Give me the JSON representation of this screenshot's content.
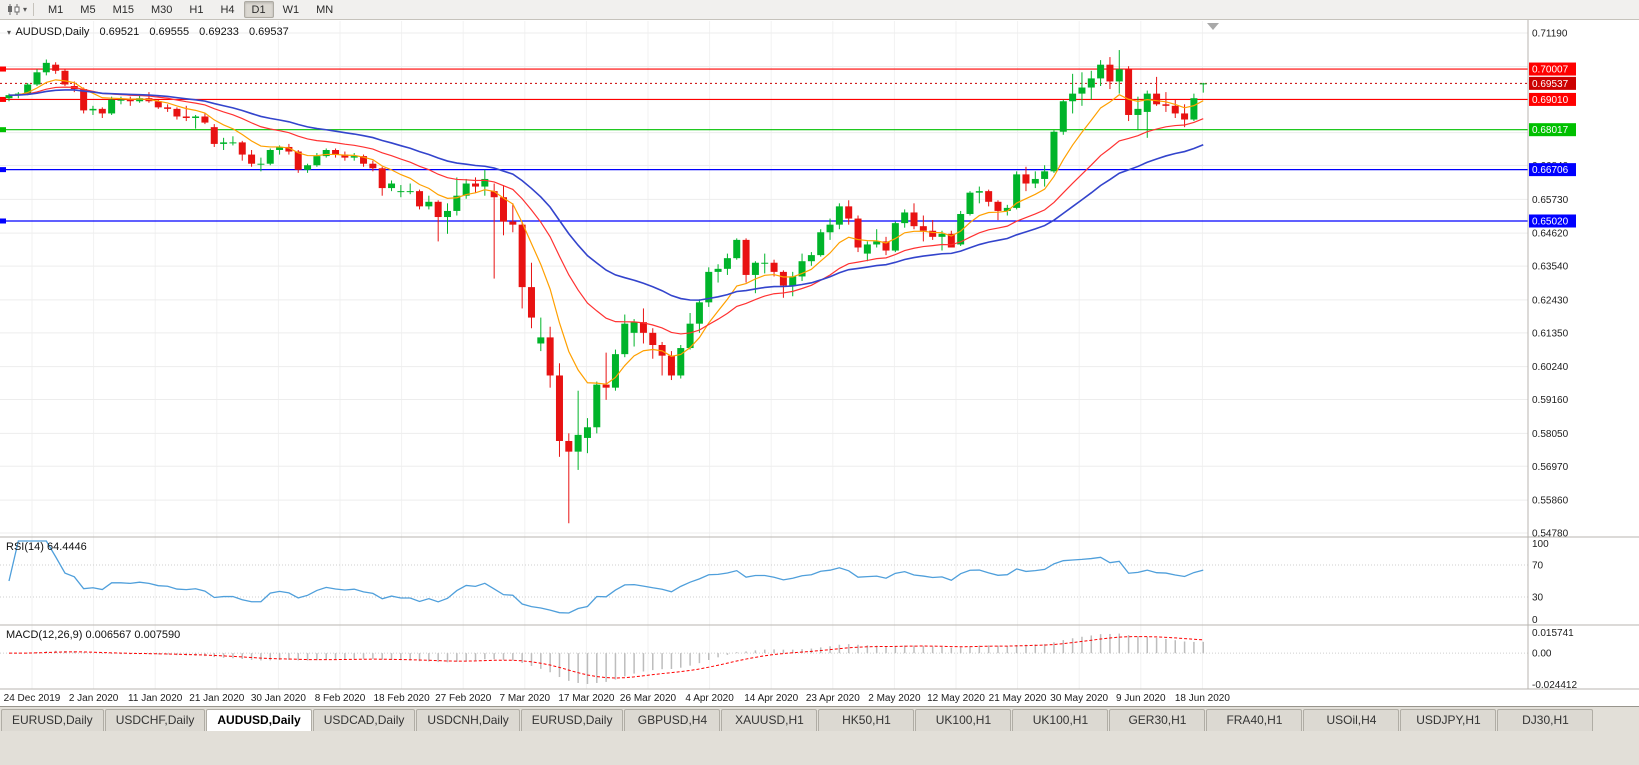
{
  "toolbar": {
    "chart_type_icon": "candlestick-chart-icon",
    "dropdown_icon": "chevron-down-icon",
    "timeframes": [
      "M1",
      "M5",
      "M15",
      "M30",
      "H1",
      "H4",
      "D1",
      "W1",
      "MN"
    ],
    "active_timeframe": "D1"
  },
  "chart_header": {
    "collapse_icon": "triangle-down-icon",
    "symbol": "AUDUSD,Daily",
    "open": "0.69521",
    "high": "0.69555",
    "low": "0.69233",
    "close": "0.69537"
  },
  "price_axis": {
    "labels": [
      "0.71190",
      "0.70090",
      "0.69000",
      "0.67920",
      "0.66840",
      "0.65730",
      "0.64620",
      "0.63540",
      "0.62430",
      "0.61350",
      "0.60240",
      "0.59160",
      "0.58050",
      "0.56970",
      "0.55860",
      "0.54780"
    ]
  },
  "levels": [
    {
      "price": 0.70007,
      "label": "0.70007",
      "color": "#ff0000",
      "type": "line"
    },
    {
      "price": 0.69537,
      "label": "0.69537",
      "color": "#cc0000",
      "type": "current"
    },
    {
      "price": 0.6901,
      "label": "0.69010",
      "color": "#ff0000",
      "type": "line"
    },
    {
      "price": 0.68017,
      "label": "0.68017",
      "color": "#00c000",
      "type": "line"
    },
    {
      "price": 0.66706,
      "label": "0.66706",
      "color": "#0000ff",
      "type": "line"
    },
    {
      "price": 0.6502,
      "label": "0.65020",
      "color": "#0000ff",
      "type": "line"
    }
  ],
  "date_axis": [
    "24 Dec 2019",
    "2 Jan 2020",
    "11 Jan 2020",
    "21 Jan 2020",
    "30 Jan 2020",
    "8 Feb 2020",
    "18 Feb 2020",
    "27 Feb 2020",
    "7 Mar 2020",
    "17 Mar 2020",
    "26 Mar 2020",
    "4 Apr 2020",
    "14 Apr 2020",
    "23 Apr 2020",
    "2 May 2020",
    "12 May 2020",
    "21 May 2020",
    "30 May 2020",
    "9 Jun 2020",
    "18 Jun 2020"
  ],
  "rsi": {
    "header": "RSI(14) 64.4446",
    "period": 14,
    "value": 64.4446,
    "levels": [
      "100",
      "70",
      "30",
      "0"
    ],
    "line_color": "#4f9fdb"
  },
  "macd": {
    "header": "MACD(12,26,9) 0.006567 0.007590",
    "fast": 12,
    "slow": 26,
    "signal": 9,
    "main_value": 0.006567,
    "signal_value": 0.00759,
    "axis": [
      "0.015741",
      "0.00",
      "-0.024412"
    ],
    "max": 0.015741,
    "min": -0.024412,
    "bar_color": "#bdbdbd",
    "signal_color": "#ff0000"
  },
  "tabs": [
    "EURUSD,Daily",
    "USDCHF,Daily",
    "AUDUSD,Daily",
    "USDCAD,Daily",
    "USDCNH,Daily",
    "EURUSD,Daily",
    "GBPUSD,H4",
    "XAUUSD,H1",
    "HK50,H1",
    "UK100,H1",
    "UK100,H1",
    "GER30,H1",
    "FRA40,H1",
    "USOil,H4",
    "USDJPY,H1",
    "DJ30,H1"
  ],
  "active_tab_index": 2,
  "chart_data": {
    "type": "candlestick",
    "symbol": "AUDUSD",
    "timeframe": "Daily",
    "ylim": [
      0.5478,
      0.7119
    ],
    "style": {
      "up_color": "#00b42a",
      "down_color": "#e81212",
      "grid_color": "#ededed",
      "vgrid_color": "#f2f2f2",
      "background": "#ffffff"
    },
    "moving_averages": [
      {
        "name": "fast-ma",
        "period": 8,
        "method": "ema",
        "color": "#ffa000",
        "width": 1.2
      },
      {
        "name": "mid-ma",
        "period": 20,
        "method": "ema",
        "color": "#ff3232",
        "width": 1.2
      },
      {
        "name": "slow-ma",
        "period": 34,
        "method": "ema",
        "color": "#3344cc",
        "width": 1.6
      }
    ],
    "ohlc": [
      [
        0.6905,
        0.692,
        0.6895,
        0.6915
      ],
      [
        0.6915,
        0.6925,
        0.6905,
        0.692
      ],
      [
        0.692,
        0.6955,
        0.6915,
        0.695
      ],
      [
        0.695,
        0.7,
        0.6945,
        0.699
      ],
      [
        0.699,
        0.7032,
        0.698,
        0.7021
      ],
      [
        0.7015,
        0.7023,
        0.6985,
        0.6995
      ],
      [
        0.6995,
        0.7,
        0.6945,
        0.695
      ],
      [
        0.6945,
        0.696,
        0.6925,
        0.6935
      ],
      [
        0.6935,
        0.694,
        0.6855,
        0.6865
      ],
      [
        0.6865,
        0.688,
        0.685,
        0.687
      ],
      [
        0.687,
        0.6875,
        0.684,
        0.6855
      ],
      [
        0.6855,
        0.691,
        0.685,
        0.69
      ],
      [
        0.69,
        0.691,
        0.6885,
        0.69
      ],
      [
        0.69,
        0.691,
        0.688,
        0.6895
      ],
      [
        0.6895,
        0.6915,
        0.689,
        0.6905
      ],
      [
        0.6905,
        0.6925,
        0.689,
        0.6895
      ],
      [
        0.6895,
        0.69,
        0.687,
        0.6875
      ],
      [
        0.6875,
        0.6885,
        0.686,
        0.687
      ],
      [
        0.687,
        0.6875,
        0.6835,
        0.6845
      ],
      [
        0.6845,
        0.688,
        0.683,
        0.684
      ],
      [
        0.684,
        0.685,
        0.6805,
        0.6845
      ],
      [
        0.6845,
        0.6855,
        0.682,
        0.6825
      ],
      [
        0.681,
        0.682,
        0.6745,
        0.6755
      ],
      [
        0.6755,
        0.6775,
        0.6735,
        0.676
      ],
      [
        0.676,
        0.678,
        0.675,
        0.676
      ],
      [
        0.676,
        0.6765,
        0.67,
        0.672
      ],
      [
        0.672,
        0.6735,
        0.668,
        0.669
      ],
      [
        0.669,
        0.671,
        0.6665,
        0.669
      ],
      [
        0.669,
        0.674,
        0.6685,
        0.6735
      ],
      [
        0.6735,
        0.675,
        0.672,
        0.6745
      ],
      [
        0.6745,
        0.6755,
        0.672,
        0.673
      ],
      [
        0.673,
        0.6735,
        0.666,
        0.667
      ],
      [
        0.667,
        0.669,
        0.666,
        0.6685
      ],
      [
        0.6685,
        0.6725,
        0.668,
        0.6715
      ],
      [
        0.6715,
        0.674,
        0.671,
        0.6735
      ],
      [
        0.6735,
        0.674,
        0.671,
        0.672
      ],
      [
        0.672,
        0.673,
        0.67,
        0.671
      ],
      [
        0.671,
        0.6725,
        0.67,
        0.6715
      ],
      [
        0.6715,
        0.672,
        0.668,
        0.669
      ],
      [
        0.669,
        0.67,
        0.6665,
        0.6675
      ],
      [
        0.6675,
        0.668,
        0.6585,
        0.661
      ],
      [
        0.661,
        0.6635,
        0.66,
        0.6625
      ],
      [
        0.66,
        0.662,
        0.658,
        0.66
      ],
      [
        0.66,
        0.6625,
        0.659,
        0.66
      ],
      [
        0.66,
        0.6605,
        0.654,
        0.655
      ],
      [
        0.655,
        0.6585,
        0.654,
        0.6565
      ],
      [
        0.6565,
        0.657,
        0.6435,
        0.6515
      ],
      [
        0.6515,
        0.656,
        0.646,
        0.6535
      ],
      [
        0.6535,
        0.6645,
        0.652,
        0.6585
      ],
      [
        0.6585,
        0.664,
        0.6575,
        0.6625
      ],
      [
        0.6625,
        0.6645,
        0.6595,
        0.6615
      ],
      [
        0.6615,
        0.667,
        0.6585,
        0.664
      ],
      [
        0.66,
        0.6625,
        0.6313,
        0.658
      ],
      [
        0.658,
        0.662,
        0.6455,
        0.65
      ],
      [
        0.65,
        0.656,
        0.6465,
        0.649
      ],
      [
        0.649,
        0.65,
        0.6215,
        0.6285
      ],
      [
        0.6285,
        0.6365,
        0.615,
        0.6185
      ],
      [
        0.61,
        0.6185,
        0.6075,
        0.612
      ],
      [
        0.612,
        0.6155,
        0.5955,
        0.5995
      ],
      [
        0.5995,
        0.6035,
        0.5728,
        0.578
      ],
      [
        0.578,
        0.5805,
        0.551,
        0.5745
      ],
      [
        0.5745,
        0.5945,
        0.5685,
        0.58
      ],
      [
        0.579,
        0.5855,
        0.574,
        0.5825
      ],
      [
        0.5825,
        0.5975,
        0.5805,
        0.5965
      ],
      [
        0.5965,
        0.607,
        0.5915,
        0.5955
      ],
      [
        0.5955,
        0.608,
        0.5945,
        0.6065
      ],
      [
        0.6065,
        0.6195,
        0.6055,
        0.6165
      ],
      [
        0.6135,
        0.618,
        0.609,
        0.617
      ],
      [
        0.617,
        0.6215,
        0.61,
        0.6135
      ],
      [
        0.6135,
        0.615,
        0.605,
        0.6095
      ],
      [
        0.6095,
        0.6105,
        0.5995,
        0.606
      ],
      [
        0.606,
        0.6075,
        0.598,
        0.5995
      ],
      [
        0.5995,
        0.6095,
        0.5985,
        0.6085
      ],
      [
        0.6085,
        0.62,
        0.608,
        0.6165
      ],
      [
        0.6165,
        0.6245,
        0.6135,
        0.6235
      ],
      [
        0.6235,
        0.635,
        0.622,
        0.6335
      ],
      [
        0.6335,
        0.636,
        0.63,
        0.6345
      ],
      [
        0.6345,
        0.6395,
        0.6325,
        0.638
      ],
      [
        0.638,
        0.6445,
        0.6375,
        0.644
      ],
      [
        0.644,
        0.6445,
        0.63,
        0.6325
      ],
      [
        0.6325,
        0.637,
        0.6265,
        0.6365
      ],
      [
        0.6365,
        0.6395,
        0.633,
        0.6365
      ],
      [
        0.6365,
        0.6375,
        0.632,
        0.6335
      ],
      [
        0.6335,
        0.634,
        0.625,
        0.629
      ],
      [
        0.629,
        0.6335,
        0.6255,
        0.632
      ],
      [
        0.632,
        0.6395,
        0.6305,
        0.637
      ],
      [
        0.637,
        0.64,
        0.6355,
        0.639
      ],
      [
        0.639,
        0.6475,
        0.6385,
        0.6465
      ],
      [
        0.6465,
        0.651,
        0.644,
        0.649
      ],
      [
        0.649,
        0.656,
        0.6475,
        0.655
      ],
      [
        0.655,
        0.657,
        0.649,
        0.651
      ],
      [
        0.651,
        0.652,
        0.64,
        0.6415
      ],
      [
        0.6395,
        0.6435,
        0.637,
        0.6425
      ],
      [
        0.6425,
        0.6475,
        0.6415,
        0.6435
      ],
      [
        0.6435,
        0.645,
        0.639,
        0.6405
      ],
      [
        0.6405,
        0.65,
        0.64,
        0.6495
      ],
      [
        0.6495,
        0.654,
        0.648,
        0.653
      ],
      [
        0.653,
        0.656,
        0.6475,
        0.6485
      ],
      [
        0.6485,
        0.652,
        0.6435,
        0.647
      ],
      [
        0.647,
        0.6505,
        0.644,
        0.645
      ],
      [
        0.645,
        0.647,
        0.6405,
        0.646
      ],
      [
        0.646,
        0.647,
        0.6415,
        0.6415
      ],
      [
        0.6425,
        0.6535,
        0.642,
        0.6525
      ],
      [
        0.6525,
        0.66,
        0.652,
        0.6595
      ],
      [
        0.6595,
        0.6615,
        0.656,
        0.66
      ],
      [
        0.66,
        0.6605,
        0.655,
        0.6565
      ],
      [
        0.6565,
        0.657,
        0.6505,
        0.6535
      ],
      [
        0.6535,
        0.6555,
        0.652,
        0.6545
      ],
      [
        0.6545,
        0.6665,
        0.654,
        0.6655
      ],
      [
        0.6655,
        0.668,
        0.66,
        0.6625
      ],
      [
        0.6625,
        0.6665,
        0.661,
        0.664
      ],
      [
        0.664,
        0.6685,
        0.6615,
        0.6665
      ],
      [
        0.6665,
        0.68,
        0.666,
        0.6795
      ],
      [
        0.6795,
        0.69,
        0.6785,
        0.6895
      ],
      [
        0.6895,
        0.6985,
        0.6855,
        0.692
      ],
      [
        0.692,
        0.699,
        0.688,
        0.694
      ],
      [
        0.694,
        0.6995,
        0.69,
        0.697
      ],
      [
        0.697,
        0.703,
        0.6945,
        0.7015
      ],
      [
        0.7015,
        0.704,
        0.6935,
        0.696
      ],
      [
        0.696,
        0.7063,
        0.692,
        0.7
      ],
      [
        0.7,
        0.701,
        0.683,
        0.685
      ],
      [
        0.685,
        0.691,
        0.68,
        0.687
      ],
      [
        0.686,
        0.693,
        0.6775,
        0.692
      ],
      [
        0.692,
        0.6975,
        0.688,
        0.6885
      ],
      [
        0.6885,
        0.6925,
        0.686,
        0.688
      ],
      [
        0.688,
        0.69,
        0.684,
        0.6855
      ],
      [
        0.6855,
        0.6885,
        0.681,
        0.6835
      ],
      [
        0.6835,
        0.692,
        0.683,
        0.6905
      ],
      [
        0.69521,
        0.69555,
        0.69233,
        0.69537
      ]
    ]
  }
}
